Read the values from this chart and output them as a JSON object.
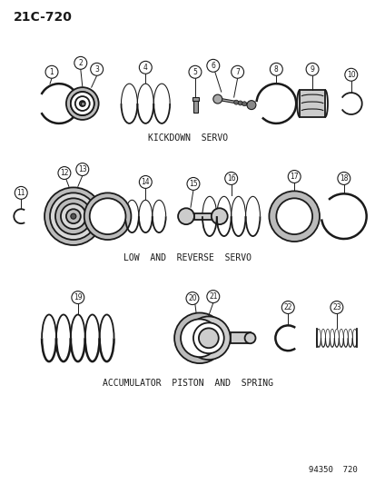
{
  "title": "21C-720",
  "background_color": "#ffffff",
  "line_color": "#1a1a1a",
  "section_labels": [
    "KICKDOWN  SERVO",
    "LOW  AND  REVERSE  SERVO",
    "ACCUMULATOR  PISTON  AND  SPRING"
  ],
  "footer": "94350  720",
  "fig_width": 4.14,
  "fig_height": 5.33,
  "dpi": 100
}
